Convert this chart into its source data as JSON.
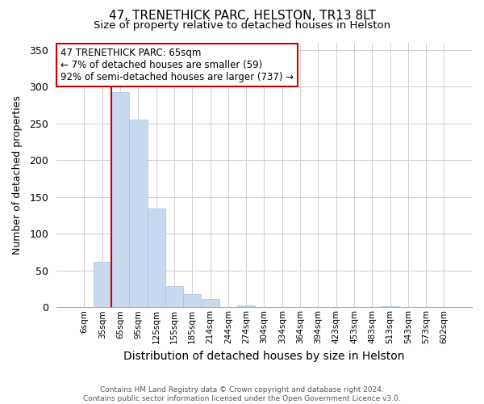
{
  "title": "47, TRENETHICK PARC, HELSTON, TR13 8LT",
  "subtitle": "Size of property relative to detached houses in Helston",
  "xlabel": "Distribution of detached houses by size in Helston",
  "ylabel": "Number of detached properties",
  "bar_labels": [
    "6sqm",
    "35sqm",
    "65sqm",
    "95sqm",
    "125sqm",
    "155sqm",
    "185sqm",
    "214sqm",
    "244sqm",
    "274sqm",
    "304sqm",
    "334sqm",
    "364sqm",
    "394sqm",
    "423sqm",
    "453sqm",
    "483sqm",
    "513sqm",
    "543sqm",
    "573sqm",
    "602sqm"
  ],
  "bar_heights": [
    0,
    62,
    293,
    255,
    134,
    29,
    18,
    11,
    0,
    3,
    0,
    0,
    0,
    0,
    0,
    0,
    0,
    1,
    0,
    0,
    0
  ],
  "bar_color": "#c8d9ef",
  "bar_edge_color": "#a8bfdf",
  "highlight_line_color": "#cc0000",
  "highlight_bar_index": 2,
  "ylim": [
    0,
    360
  ],
  "yticks": [
    0,
    50,
    100,
    150,
    200,
    250,
    300,
    350
  ],
  "annotation_text": "47 TRENETHICK PARC: 65sqm\n← 7% of detached houses are smaller (59)\n92% of semi-detached houses are larger (737) →",
  "annotation_box_color": "#ffffff",
  "annotation_box_edge": "#cc0000",
  "footer_line1": "Contains HM Land Registry data © Crown copyright and database right 2024.",
  "footer_line2": "Contains public sector information licensed under the Open Government Licence v3.0.",
  "bg_color": "#ffffff",
  "grid_color": "#d0d0d0"
}
